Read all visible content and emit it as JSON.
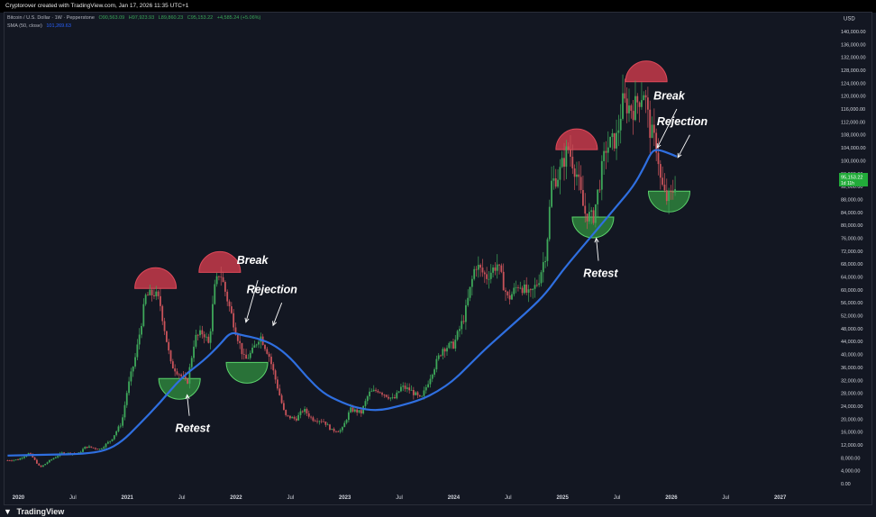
{
  "header": {
    "caption": "Cryptorover created with TradingView.com, Jan 17, 2026 11:35 UTC+1"
  },
  "legend": {
    "symbol": "Bitcoin / U.S. Dollar · 1W · Pepperstone",
    "open": "O90,563.09",
    "high": "H97,923.93",
    "low": "L89,860.23",
    "close": "C95,153.22",
    "change": "+4,585.24 (+5.06%)",
    "sma_label": "SMA (50, close)",
    "sma_value": "101,269.63"
  },
  "price_scale": {
    "currency": "USD",
    "last_price": "95,153.22",
    "countdown": "1d 11h"
  },
  "footer": {
    "brand": "TradingView",
    "logo_glyph": "▼"
  },
  "colors": {
    "background": "#131722",
    "up": "#26a69a",
    "up_body": "#3ea85a",
    "down": "#c9535a",
    "sma": "#2f6fe0",
    "top_fill": "#c73a4a",
    "bottom_fill": "#2f8a3f",
    "text": "#d1d4dc",
    "price_label": "#22ab3a"
  },
  "chart_data": {
    "type": "candlestick",
    "timeframe": "1W",
    "title": "Bitcoin / U.S. Dollar",
    "ylabel": "USD",
    "ylim": [
      0,
      140000
    ],
    "yticks": [
      0,
      4000,
      8000,
      12000,
      16000,
      20000,
      24000,
      28000,
      32000,
      36000,
      40000,
      44000,
      48000,
      52000,
      56000,
      60000,
      64000,
      68000,
      72000,
      76000,
      80000,
      84000,
      88000,
      92000,
      96000,
      100000,
      104000,
      108000,
      112000,
      116000,
      120000,
      124000,
      128000,
      132000,
      136000,
      140000
    ],
    "ytick_labels": [
      "0.00",
      "4,000.00",
      "8,000.00",
      "12,000.00",
      "16,000.00",
      "20,000.00",
      "24,000.00",
      "28,000.00",
      "32,000.00",
      "36,000.00",
      "40,000.00",
      "44,000.00",
      "48,000.00",
      "52,000.00",
      "56,000.00",
      "60,000.00",
      "64,000.00",
      "68,000.00",
      "72,000.00",
      "76,000.00",
      "80,000.00",
      "84,000.00",
      "88,000.00",
      "92,000.00",
      "96,000.00",
      "100,000.00",
      "104,000.00",
      "108,000.00",
      "112,000.00",
      "116,000.00",
      "120,000.00",
      "124,000.00",
      "128,000.00",
      "132,000.00",
      "136,000.00",
      "140,000.00"
    ],
    "xlim": [
      2019.88,
      2027.5
    ],
    "xticks": [
      {
        "t": 2020.0,
        "label": "2020",
        "bold": true
      },
      {
        "t": 2020.5,
        "label": "Jul",
        "bold": false
      },
      {
        "t": 2021.0,
        "label": "2021",
        "bold": true
      },
      {
        "t": 2021.5,
        "label": "Jul",
        "bold": false
      },
      {
        "t": 2022.0,
        "label": "2022",
        "bold": true
      },
      {
        "t": 2022.5,
        "label": "Jul",
        "bold": false
      },
      {
        "t": 2023.0,
        "label": "2023",
        "bold": true
      },
      {
        "t": 2023.5,
        "label": "Jul",
        "bold": false
      },
      {
        "t": 2024.0,
        "label": "2024",
        "bold": true
      },
      {
        "t": 2024.5,
        "label": "Jul",
        "bold": false
      },
      {
        "t": 2025.0,
        "label": "2025",
        "bold": true
      },
      {
        "t": 2025.5,
        "label": "Jul",
        "bold": false
      },
      {
        "t": 2026.0,
        "label": "2026",
        "bold": true
      },
      {
        "t": 2026.5,
        "label": "Jul",
        "bold": false
      },
      {
        "t": 2027.0,
        "label": "2027",
        "bold": true
      }
    ],
    "price_path": [
      [
        2019.9,
        7200
      ],
      [
        2020.0,
        7500
      ],
      [
        2020.1,
        9500
      ],
      [
        2020.2,
        5000
      ],
      [
        2020.28,
        7000
      ],
      [
        2020.4,
        9500
      ],
      [
        2020.55,
        9300
      ],
      [
        2020.62,
        11500
      ],
      [
        2020.75,
        10700
      ],
      [
        2020.85,
        13500
      ],
      [
        2020.95,
        19000
      ],
      [
        2021.0,
        29000
      ],
      [
        2021.08,
        40000
      ],
      [
        2021.17,
        58000
      ],
      [
        2021.25,
        59000
      ],
      [
        2021.3,
        56000
      ],
      [
        2021.4,
        37000
      ],
      [
        2021.48,
        34000
      ],
      [
        2021.55,
        31000
      ],
      [
        2021.62,
        45000
      ],
      [
        2021.7,
        47000
      ],
      [
        2021.75,
        43000
      ],
      [
        2021.8,
        60000
      ],
      [
        2021.85,
        66000
      ],
      [
        2021.92,
        57000
      ],
      [
        2022.0,
        47000
      ],
      [
        2022.08,
        38000
      ],
      [
        2022.15,
        41000
      ],
      [
        2022.22,
        46000
      ],
      [
        2022.3,
        40000
      ],
      [
        2022.38,
        30000
      ],
      [
        2022.45,
        21000
      ],
      [
        2022.55,
        20000
      ],
      [
        2022.62,
        23000
      ],
      [
        2022.7,
        20000
      ],
      [
        2022.8,
        19500
      ],
      [
        2022.88,
        16500
      ],
      [
        2022.97,
        16500
      ],
      [
        2023.05,
        23000
      ],
      [
        2023.15,
        22000
      ],
      [
        2023.22,
        28000
      ],
      [
        2023.3,
        29000
      ],
      [
        2023.45,
        26000
      ],
      [
        2023.52,
        30000
      ],
      [
        2023.6,
        29000
      ],
      [
        2023.7,
        26000
      ],
      [
        2023.8,
        34500
      ],
      [
        2023.9,
        42000
      ],
      [
        2024.0,
        43000
      ],
      [
        2024.1,
        52000
      ],
      [
        2024.2,
        68000
      ],
      [
        2024.3,
        64000
      ],
      [
        2024.4,
        68000
      ],
      [
        2024.5,
        57000
      ],
      [
        2024.6,
        62000
      ],
      [
        2024.7,
        58000
      ],
      [
        2024.78,
        63000
      ],
      [
        2024.85,
        72000
      ],
      [
        2024.9,
        93000
      ],
      [
        2024.97,
        96000
      ],
      [
        2025.05,
        104000
      ],
      [
        2025.13,
        96000
      ],
      [
        2025.2,
        84000
      ],
      [
        2025.28,
        82000
      ],
      [
        2025.35,
        95000
      ],
      [
        2025.4,
        104000
      ],
      [
        2025.5,
        107000
      ],
      [
        2025.55,
        118000
      ],
      [
        2025.65,
        116000
      ],
      [
        2025.75,
        122000
      ],
      [
        2025.8,
        110000
      ],
      [
        2025.87,
        104000
      ],
      [
        2025.9,
        94000
      ],
      [
        2025.95,
        88000
      ],
      [
        2026.0,
        89000
      ],
      [
        2026.05,
        95153
      ]
    ],
    "sma": [
      [
        2019.9,
        8700
      ],
      [
        2020.3,
        9000
      ],
      [
        2020.6,
        9200
      ],
      [
        2020.8,
        10200
      ],
      [
        2020.95,
        13000
      ],
      [
        2021.1,
        18000
      ],
      [
        2021.3,
        25000
      ],
      [
        2021.5,
        33000
      ],
      [
        2021.7,
        38000
      ],
      [
        2021.85,
        43000
      ],
      [
        2021.95,
        47000
      ],
      [
        2022.05,
        46000
      ],
      [
        2022.2,
        45000
      ],
      [
        2022.35,
        43000
      ],
      [
        2022.5,
        39000
      ],
      [
        2022.65,
        33000
      ],
      [
        2022.8,
        28000
      ],
      [
        2022.95,
        25500
      ],
      [
        2023.1,
        23500
      ],
      [
        2023.3,
        22500
      ],
      [
        2023.5,
        24000
      ],
      [
        2023.7,
        26000
      ],
      [
        2023.85,
        28500
      ],
      [
        2024.0,
        32000
      ],
      [
        2024.15,
        37000
      ],
      [
        2024.3,
        42000
      ],
      [
        2024.5,
        48000
      ],
      [
        2024.7,
        54000
      ],
      [
        2024.85,
        59000
      ],
      [
        2025.0,
        66000
      ],
      [
        2025.15,
        72000
      ],
      [
        2025.3,
        78000
      ],
      [
        2025.5,
        86000
      ],
      [
        2025.65,
        92000
      ],
      [
        2025.75,
        98000
      ],
      [
        2025.82,
        103000
      ],
      [
        2025.88,
        103500
      ],
      [
        2026.0,
        102000
      ],
      [
        2026.05,
        101270
      ]
    ],
    "tops": [
      [
        2021.26,
        61000
      ],
      [
        2021.85,
        66000
      ],
      [
        2025.13,
        104000
      ],
      [
        2025.77,
        125000
      ]
    ],
    "bottoms": [
      [
        2021.48,
        32000
      ],
      [
        2022.1,
        37000
      ],
      [
        2025.28,
        82000
      ],
      [
        2025.98,
        90000
      ]
    ],
    "annotations": [
      {
        "text": "Break",
        "t": 2022.15,
        "y": 68000,
        "arrow_to_t": 2022.09,
        "arrow_to_y": 50000,
        "arrow_from_t": 2022.2,
        "arrow_from_y": 63000
      },
      {
        "text": "Rejection",
        "t": 2022.33,
        "y": 59000,
        "arrow_to_t": 2022.34,
        "arrow_to_y": 49000,
        "arrow_from_t": 2022.42,
        "arrow_from_y": 56000
      },
      {
        "text": "Retest",
        "t": 2021.6,
        "y": 16000,
        "arrow_to_t": 2021.55,
        "arrow_to_y": 27500,
        "arrow_from_t": 2021.57,
        "arrow_from_y": 21000
      },
      {
        "text": "Break",
        "t": 2025.98,
        "y": 119000,
        "arrow_to_t": 2025.87,
        "arrow_to_y": 104000,
        "arrow_from_t": 2026.05,
        "arrow_from_y": 116000
      },
      {
        "text": "Rejection",
        "t": 2026.1,
        "y": 111000,
        "arrow_to_t": 2026.06,
        "arrow_to_y": 101000,
        "arrow_from_t": 2026.17,
        "arrow_from_y": 108000
      },
      {
        "text": "Retest",
        "t": 2025.35,
        "y": 64000,
        "arrow_to_t": 2025.31,
        "arrow_to_y": 76000,
        "arrow_from_t": 2025.33,
        "arrow_from_y": 69000
      }
    ]
  }
}
